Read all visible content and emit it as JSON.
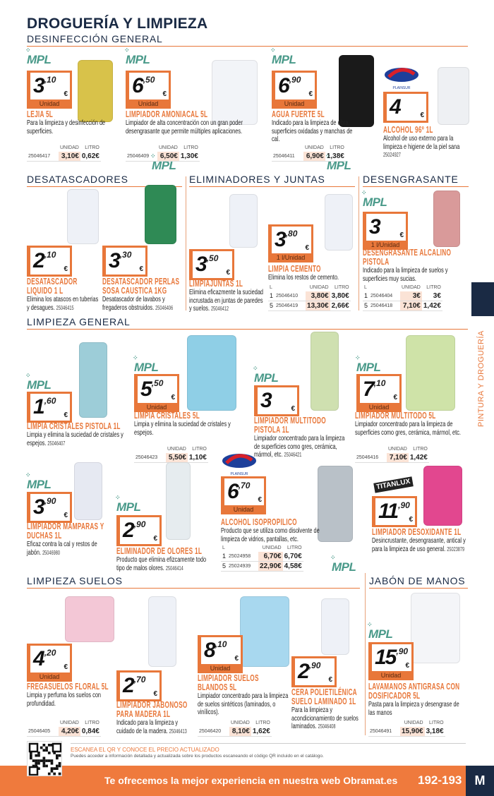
{
  "page": {
    "title": "DROGUERÍA Y LIMPIEZA",
    "side_tab": "PINTURA Y DROGUERÍA"
  },
  "sections": [
    "DESINFECCIÓN GENERAL",
    "DESATASCADORES",
    "ELIMINADORES Y JUNTAS",
    "DESENGRASANTE",
    "LIMPIEZA GENERAL",
    "LIMPIEZA SUELOS",
    "JABÓN DE MANOS"
  ],
  "brands": {
    "mpl": "MPL",
    "plainsur": "PLAINSUR",
    "titanlux": "TITANLUX"
  },
  "colors": {
    "accent": "#e8773a",
    "navy": "#1a2a44",
    "band": "#ef7a3d"
  },
  "products": [
    {
      "brand": "mpl",
      "title": "LEJIA 5L",
      "desc": "Para la limpieza y desinfección de superficies.",
      "price_int": "3",
      "price_dec": ",10",
      "unit": "Unidad",
      "table": {
        "headers": [
          "",
          "UNIDAD",
          "LITRO"
        ],
        "rows": [
          [
            "25046417",
            "3,10€",
            "0,62€"
          ]
        ]
      }
    },
    {
      "brand": "mpl",
      "title": "LIMPIADOR AMONIACAL 5L",
      "desc": "Limpiador de alta concentración con un gran poder desengrasante que permite múltiples aplicaciones.",
      "price_int": "6",
      "price_dec": ",50",
      "unit": "Unidad",
      "table": {
        "headers": [
          "",
          "UNIDAD",
          "LITRO"
        ],
        "rows": [
          [
            "25046409",
            "6,50€",
            "1,30€"
          ]
        ]
      }
    },
    {
      "brand": "mpl",
      "title": "AGUA FUERTE 5L",
      "desc": "Indicado para la limpieza de obra, superficies oxidadas y manchas de cal.",
      "price_int": "6",
      "price_dec": ",90",
      "unit": "Unidad",
      "table": {
        "headers": [
          "",
          "UNIDAD",
          "LITRO"
        ],
        "rows": [
          [
            "25046411",
            "6,90€",
            "1,38€"
          ]
        ]
      }
    },
    {
      "brand": "plainsur",
      "title": "ALCOHOL 96º 1L",
      "desc": "Alcohol de uso externo para la limpieza e higiene de la piel sana",
      "code": "25024927",
      "price_int": "4",
      "price_dec": ""
    },
    {
      "title": "DESATASCADOR LIQUIDO 1 L",
      "desc": "Elimina los atascos en tuberias y desagues.",
      "code": "25046415",
      "price_int": "2",
      "price_dec": ",10"
    },
    {
      "title": "DESATASCADOR PERLAS SOSA CAUSTICA 1KG",
      "desc": "Desatascador de lavabos y fregaderos obstruidos.",
      "code": "25046406",
      "price_int": "3",
      "price_dec": ",30"
    },
    {
      "title": "LIMPIAJUNTAS 1L",
      "desc": "Elimina eficazmente la suciedad incrustada en juntas de paredes y suelos.",
      "code": "25046412",
      "price_int": "3",
      "price_dec": ",50"
    },
    {
      "title": "LIMPIA CEMENTO",
      "desc": "Elimina los restos de cemento.",
      "price_int": "3",
      "price_dec": ",80",
      "unit": "1 l/Unidad",
      "table": {
        "headers": [
          "L",
          "",
          "UNIDAD",
          "LITRO"
        ],
        "rows": [
          [
            "1",
            "25046410",
            "3,80€",
            "3,80€"
          ],
          [
            "5",
            "25046419",
            "13,30€",
            "2,66€"
          ]
        ]
      }
    },
    {
      "brand": "mpl",
      "title": "DESENGRASANTE ALCALINO PISTOLA",
      "desc": "Indicado para la limpieza de suelos y superficies muy sucias.",
      "price_int": "3",
      "price_dec": "",
      "unit": "1 l/Unidad",
      "table": {
        "headers": [
          "L",
          "",
          "UNIDAD",
          "LITRO"
        ],
        "rows": [
          [
            "1",
            "25046404",
            "3€",
            "3€"
          ],
          [
            "5",
            "25046418",
            "7,10€",
            "1,42€"
          ]
        ]
      }
    },
    {
      "brand": "mpl",
      "title": "LIMPIA CRISTALES PISTOLA 1L",
      "desc": "Limpia y elimina la suciedad de cristales y espejos.",
      "code": "25046407",
      "price_int": "1",
      "price_dec": ",60"
    },
    {
      "brand": "mpl",
      "title": "LIMPIA CRISTALES 5L",
      "desc": "Limpia y elimina la suciedad de cristales y espejos.",
      "price_int": "5",
      "price_dec": ",50",
      "unit": "Unidad",
      "table": {
        "headers": [
          "",
          "UNIDAD",
          "LITRO"
        ],
        "rows": [
          [
            "25046423",
            "5,50€",
            "1,10€"
          ]
        ]
      }
    },
    {
      "brand": "mpl",
      "title": "LIMPIADOR MULTITODO PISTOLA 1L",
      "desc": "Limpiador concentrado para la limpieza de superficies como gres, cerámica, mármol, etc.",
      "code": "25046421",
      "price_int": "3",
      "price_dec": ""
    },
    {
      "brand": "mpl",
      "title": "LIMPIADOR MULTITODO 5L",
      "desc": "Limpiador concentrado para la limpieza de superficies como gres, cerámica, mármol, etc.",
      "price_int": "7",
      "price_dec": ",10",
      "unit": "Unidad",
      "table": {
        "headers": [
          "",
          "UNIDAD",
          "LITRO"
        ],
        "rows": [
          [
            "25046416",
            "7,10€",
            "1,42€"
          ]
        ]
      }
    },
    {
      "brand": "mpl",
      "title": "LIMPIADOR MAMPARAS Y DUCHAS 1L",
      "desc": "Eficaz contra la cal y restos de jabón.",
      "code": "25046980",
      "price_int": "3",
      "price_dec": ",90"
    },
    {
      "brand": "mpl",
      "title": "ELIMINADOR DE OLORES 1L",
      "desc": "Producto que elimina efizcamente todo tipo de malos olores.",
      "code": "25046414",
      "price_int": "2",
      "price_dec": ",90"
    },
    {
      "brand": "plainsur",
      "title": "ALCOHOL ISOPROPILICO",
      "desc": "Producto que se utiliza como disolvente de limpieza de vidrios, pantallas, etc.",
      "price_int": "6",
      "price_dec": ",70",
      "unit": "Unidad",
      "table": {
        "headers": [
          "L",
          "",
          "UNIDAD",
          "LITRO"
        ],
        "rows": [
          [
            "1",
            "25024958",
            "6,70€",
            "6,70€"
          ],
          [
            "5",
            "25024939",
            "22,90€",
            "4,58€"
          ]
        ]
      }
    },
    {
      "brand": "titanlux",
      "title": "LIMPIADOR DESOXIDANTE 1L",
      "desc": "Desincrustante, desengrasante, antical y para la limpieza de uso general.",
      "code": "25023879",
      "price_int": "11",
      "price_dec": ",90"
    },
    {
      "title": "FREGASUELOS FLORAL 5L",
      "desc": "Limpia y perfuma los suelos con profundidad.",
      "price_int": "4",
      "price_dec": ",20",
      "unit": "Unidad",
      "table": {
        "headers": [
          "",
          "UNIDAD",
          "LITRO"
        ],
        "rows": [
          [
            "25046405",
            "4,20€",
            "0,84€"
          ]
        ]
      }
    },
    {
      "title": "LIMPIADOR JABONOSO PARA MADERA 1L",
      "desc": "Indicado para la limpieza y cuidado de la madera.",
      "code": "25046413",
      "price_int": "2",
      "price_dec": ",70"
    },
    {
      "title": "LIMPIADOR SUELOS BLANDOS 5L",
      "desc": "Limpiador concentrado para la limpieza de suelos sintéticos (laminados, o vinílicos).",
      "price_int": "8",
      "price_dec": ",10",
      "unit": "Unidad",
      "table": {
        "headers": [
          "",
          "UNIDAD",
          "LITRO"
        ],
        "rows": [
          [
            "25046420",
            "8,10€",
            "1,62€"
          ]
        ]
      }
    },
    {
      "title": "CERA POLIETILÉNICA SUELO LAMINADO 1L",
      "desc": "Para la limpieza y acondicionamiento de suelos laminados.",
      "code": "25046408",
      "price_int": "2",
      "price_dec": ",90"
    },
    {
      "brand": "mpl",
      "title": "LAVAMANOS ANTIGRASA CON DOSIFICADOR 5L",
      "desc": "Pasta para la limpieza y desengrase de las manos",
      "price_int": "15",
      "price_dec": ",90",
      "unit": "Unidad",
      "table": {
        "headers": [
          "",
          "UNIDAD",
          "LITRO"
        ],
        "rows": [
          [
            "25046491",
            "15,90€",
            "3,18€"
          ]
        ]
      }
    }
  ],
  "footer": {
    "qr_title": "ESCANEA EL QR Y CONOCE EL PRECIO ACTUALIZADO",
    "qr_text": "Puedes acceder a información detallada y actualizada sobre los productos escaneando el código QR incluido en el catálogo.",
    "banner": "Te ofrecemos la mejor experiencia en nuestra web Obramat.es",
    "page_numbers": "192-193",
    "logo": "M"
  }
}
